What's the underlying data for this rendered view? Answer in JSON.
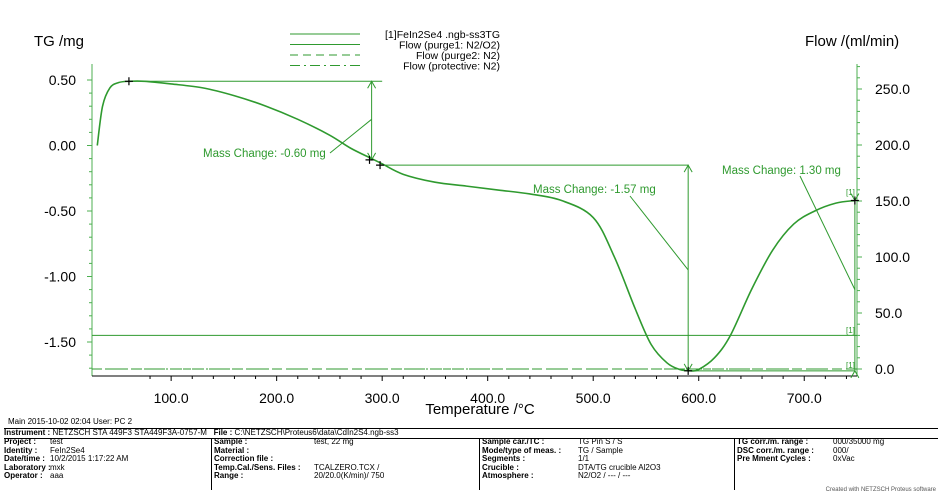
{
  "colors": {
    "curve": "#2f9a2f",
    "axis": "#4caf50",
    "text": "#000000",
    "annotation": "#2f9a2f"
  },
  "chart_data": {
    "type": "line",
    "xlabel": "Temperature /°C",
    "ylabel_left": "TG /mg",
    "ylabel_right": "Flow /(ml/min)",
    "x_ticks": [
      "100.0",
      "200.0",
      "300.0",
      "400.0",
      "500.0",
      "600.0",
      "700.0"
    ],
    "x_tick_values": [
      100,
      200,
      300,
      400,
      500,
      600,
      700
    ],
    "y_left_ticks": [
      "0.50",
      "0.00",
      "-0.50",
      "-1.00",
      "-1.50"
    ],
    "y_left_tick_values": [
      0.5,
      0.0,
      -0.5,
      -1.0,
      -1.5
    ],
    "y_right_ticks": [
      "250.0",
      "200.0",
      "150.0",
      "100.0",
      "50.0",
      "0.0"
    ],
    "y_right_tick_values": [
      250,
      200,
      150,
      100,
      50,
      0
    ],
    "xlim": [
      25,
      750
    ],
    "ylim_left": [
      -1.73,
      0.6
    ],
    "ylim_right": [
      0,
      270
    ],
    "legend_position": "top-center",
    "legend": [
      {
        "label": "[1]FeIn2Se4 .ngb-ss3TG",
        "style": "solid"
      },
      {
        "label": "Flow (purge1: N2/O2)",
        "style": "solid"
      },
      {
        "label": "Flow (purge2: N2)",
        "style": "dashed"
      },
      {
        "label": "Flow (protective: N2)",
        "style": "dashdot"
      }
    ],
    "series": [
      {
        "name": "[1]FeIn2Se4 .ngb-ss3TG",
        "axis": "left",
        "x": [
          30,
          35,
          42,
          50,
          60,
          75,
          100,
          130,
          160,
          190,
          220,
          250,
          270,
          290,
          300,
          320,
          350,
          380,
          410,
          440,
          470,
          500,
          520,
          540,
          555,
          570,
          582,
          592,
          600,
          615,
          630,
          650,
          670,
          690,
          710,
          730,
          748
        ],
        "y": [
          0.0,
          0.3,
          0.44,
          0.48,
          0.49,
          0.49,
          0.47,
          0.44,
          0.38,
          0.3,
          0.2,
          0.08,
          -0.02,
          -0.1,
          -0.14,
          -0.22,
          -0.28,
          -0.31,
          -0.34,
          -0.37,
          -0.42,
          -0.55,
          -0.85,
          -1.25,
          -1.52,
          -1.66,
          -1.71,
          -1.72,
          -1.71,
          -1.62,
          -1.45,
          -1.1,
          -0.8,
          -0.6,
          -0.5,
          -0.44,
          -0.42
        ]
      },
      {
        "name": "Flow (purge1: N2/O2)",
        "axis": "right",
        "x": [
          25,
          750
        ],
        "y": [
          30,
          30
        ]
      },
      {
        "name": "Flow (purge2: N2)",
        "axis": "right",
        "x": [
          25,
          750
        ],
        "y": [
          0,
          0
        ]
      },
      {
        "name": "Flow (protective: N2)",
        "axis": "right",
        "x": [
          25,
          750
        ],
        "y": [
          0,
          0
        ]
      }
    ],
    "markers": [
      {
        "x": 60,
        "y": 0.49
      },
      {
        "x": 288,
        "y": -0.11
      },
      {
        "x": 298,
        "y": -0.15
      },
      {
        "x": 590,
        "y": -1.72
      },
      {
        "x": 748,
        "y": -0.42
      }
    ],
    "annotations": [
      {
        "text": "Mass Change: -0.60 mg"
      },
      {
        "text": "Mass Change: -1.57 mg"
      },
      {
        "text": "Mass Change: 1.30 mg"
      }
    ],
    "end_labels": [
      "[1]",
      "[1]",
      "[1]"
    ]
  },
  "footer": {
    "main": "Main   2015-10-02 02:04   User: PC 2",
    "instrument_label": "Instrument :",
    "instrument_value": "NETZSCH STA 449F3 STA449F3A-0757-M",
    "file_label": "File :",
    "file_value": "C:\\NETZSCH\\Proteus6\\data\\CdIn2S4.ngb-ss3",
    "columns": [
      [
        {
          "k": "Project :",
          "v": "test"
        },
        {
          "k": "Identity :",
          "v": "FeIn2Se4"
        },
        {
          "k": "Date/time :",
          "v": "10/2/2015 1:17:22 AM"
        },
        {
          "k": "Laboratory :",
          "v": "mxk"
        },
        {
          "k": "Operator :",
          "v": "aaa"
        }
      ],
      [
        {
          "k": "Sample :",
          "v": "test, 22 mg"
        },
        {
          "k": "Material :",
          "v": ""
        },
        {
          "k": "Correction file :",
          "v": ""
        },
        {
          "k": "Temp.Cal./Sens. Files :",
          "v": "TCALZERO.TCX /"
        },
        {
          "k": "Range :",
          "v": "20/20.0(K/min)/ 750"
        }
      ],
      [
        {
          "k": "Sample car./TC :",
          "v": "TG Pin S / S"
        },
        {
          "k": "Mode/type of meas. :",
          "v": "TG / Sample"
        },
        {
          "k": "Segments :",
          "v": "1/1"
        },
        {
          "k": "Crucible :",
          "v": "DTA/TG crucible Al2O3"
        },
        {
          "k": "Atmosphere :",
          "v": "N2/O2 / --- / ---"
        }
      ],
      [
        {
          "k": "TG corr./m. range :",
          "v": "000/35000 mg"
        },
        {
          "k": "DSC corr./m. range :",
          "v": "000/"
        },
        {
          "k": "Pre Mment Cycles :",
          "v": "0xVac"
        },
        {
          "k": "",
          "v": ""
        },
        {
          "k": "",
          "v": ""
        }
      ]
    ],
    "created": "Created with NETZSCH Proteus software"
  }
}
